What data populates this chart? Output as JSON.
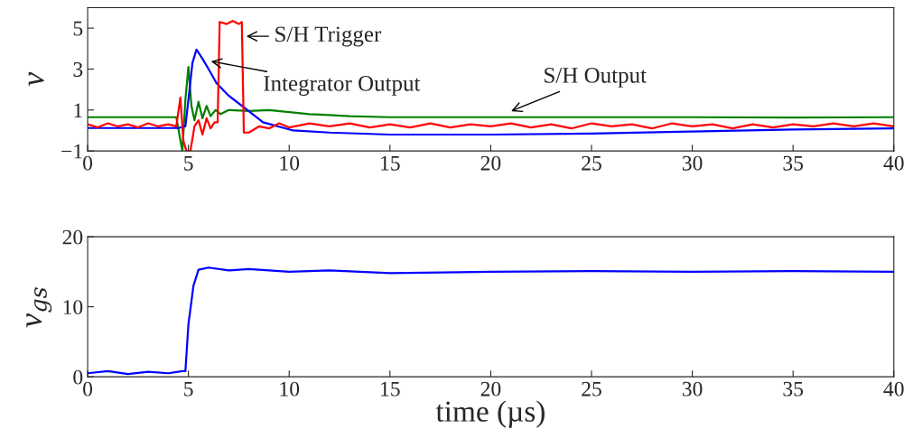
{
  "chart_data": [
    {
      "type": "line",
      "ylabel": "v",
      "xlim": [
        0,
        40
      ],
      "ylim": [
        -1,
        6
      ],
      "xticks": [
        0,
        5,
        10,
        15,
        20,
        25,
        30,
        35,
        40
      ],
      "yticks": [
        {
          "value": -1,
          "label": "−1"
        },
        1,
        3,
        5
      ],
      "grid": false,
      "legend": false,
      "series": [
        {
          "color": "#008000",
          "x": [
            0,
            4.4,
            4.55,
            4.7,
            4.85,
            5.0,
            5.15,
            5.3,
            5.5,
            5.7,
            5.9,
            6.1,
            6.35,
            6.6,
            7,
            8,
            9,
            10,
            11,
            12,
            13,
            15,
            20,
            25,
            30,
            35,
            40
          ],
          "values": [
            0.65,
            0.65,
            -0.2,
            -1,
            1.5,
            3.1,
            1.2,
            0.5,
            1.4,
            0.6,
            1.2,
            0.7,
            1.0,
            0.8,
            1.0,
            0.95,
            1.0,
            0.9,
            0.8,
            0.75,
            0.7,
            0.65,
            0.65,
            0.65,
            0.65,
            0.63,
            0.65
          ]
        },
        {
          "color": "#0000ff",
          "x": [
            0,
            4.5,
            4.85,
            5.0,
            5.2,
            5.4,
            5.7,
            6.0,
            6.4,
            7,
            7.8,
            8.7,
            10.2,
            12,
            15,
            20,
            25,
            30,
            35,
            40
          ],
          "values": [
            0.12,
            0.12,
            0.2,
            1.5,
            3.3,
            3.95,
            3.5,
            3.0,
            2.3,
            1.7,
            1.1,
            0.4,
            0.0,
            -0.1,
            -0.2,
            -0.2,
            -0.15,
            -0.05,
            0.05,
            0.1
          ]
        },
        {
          "color": "#ff0000",
          "x": [
            0,
            0.5,
            1,
            1.5,
            2,
            2.5,
            3,
            3.5,
            4,
            4.4,
            4.6,
            4.75,
            4.9,
            5.1,
            5.3,
            5.5,
            5.7,
            5.9,
            6.1,
            6.3,
            6.45,
            6.55,
            6.9,
            7.2,
            7.5,
            7.65,
            7.75,
            8,
            8.5,
            9,
            9.5,
            10,
            11,
            12,
            13,
            14,
            15,
            16,
            17,
            18,
            19,
            20,
            21,
            22,
            23,
            24,
            25,
            26,
            27,
            28,
            29,
            30,
            31,
            32,
            33,
            34,
            35,
            36,
            37,
            38,
            39,
            40
          ],
          "values": [
            0.3,
            0.15,
            0.35,
            0.2,
            0.3,
            0.15,
            0.35,
            0.2,
            0.3,
            0.2,
            1.6,
            -0.5,
            -1,
            -1,
            0.2,
            0.5,
            -0.2,
            0.6,
            0.1,
            0.4,
            0.4,
            5.3,
            5.2,
            5.35,
            5.2,
            5.3,
            -0.1,
            -0.1,
            0.2,
            0.1,
            0.35,
            0.15,
            0.35,
            0.2,
            0.35,
            0.15,
            0.3,
            0.15,
            0.35,
            0.15,
            0.3,
            0.2,
            0.35,
            0.15,
            0.3,
            0.1,
            0.35,
            0.2,
            0.3,
            0.1,
            0.35,
            0.2,
            0.3,
            0.1,
            0.3,
            0.15,
            0.3,
            0.2,
            0.35,
            0.2,
            0.35,
            0.2
          ]
        }
      ],
      "annotations": [
        {
          "text": "S/H Trigger",
          "x": 7.75,
          "y": 4.6
        },
        {
          "text": "Integrator Output",
          "x": 6.0,
          "y": 3.4
        },
        {
          "text": "S/H Output",
          "x": 20.9,
          "y": 0.9
        }
      ]
    },
    {
      "type": "line",
      "ylabel": "v$_{gs}$",
      "xlabel": "time (µs)",
      "xlim": [
        0,
        40
      ],
      "ylim": [
        0,
        20
      ],
      "xticks": [
        0,
        5,
        10,
        15,
        20,
        25,
        30,
        35,
        40
      ],
      "yticks": [
        0,
        10,
        20
      ],
      "grid": false,
      "legend": false,
      "series": [
        {
          "color": "#0000ff",
          "x": [
            0,
            1,
            2,
            3,
            4,
            4.7,
            4.85,
            5.0,
            5.25,
            5.5,
            6,
            7,
            8,
            10,
            12,
            15,
            20,
            25,
            30,
            35,
            40
          ],
          "values": [
            0.5,
            0.8,
            0.4,
            0.7,
            0.5,
            0.8,
            0.8,
            7.5,
            13,
            15.3,
            15.6,
            15.2,
            15.4,
            15,
            15.2,
            14.8,
            15,
            15.1,
            15,
            15.1,
            15
          ]
        }
      ]
    }
  ]
}
